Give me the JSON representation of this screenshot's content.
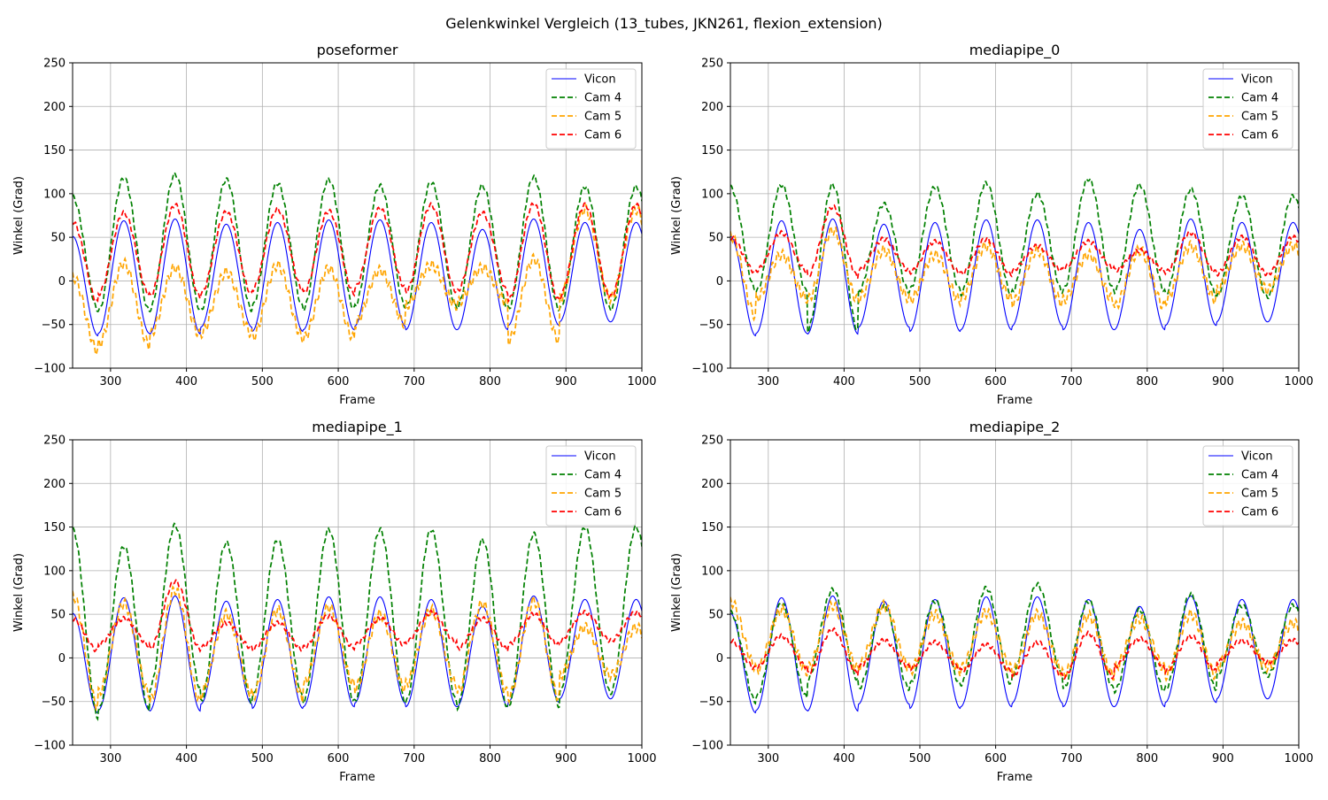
{
  "figure": {
    "title": "Gelenkwinkel Vergleich (13_tubes, JKN261, flexion_extension)"
  },
  "chart_data": [
    {
      "type": "line",
      "title": "poseformer",
      "xlabel": "Frame",
      "ylabel": "Winkel (Grad)",
      "xlim": [
        250,
        1000
      ],
      "ylim": [
        -100,
        250
      ],
      "xticks": [
        300,
        400,
        500,
        600,
        700,
        800,
        900,
        1000
      ],
      "yticks": [
        -100,
        -50,
        0,
        50,
        100,
        150,
        200,
        250
      ],
      "grid": true,
      "legend_position": "top-right",
      "series": [
        {
          "name": "Vicon",
          "color": "#0000ff",
          "style": "solid",
          "peaks": [
            51,
            69,
            71,
            65,
            67,
            70,
            70,
            67,
            59,
            71,
            67
          ],
          "troughs": [
            -63,
            -60,
            -61,
            -53,
            -58,
            -56,
            -52,
            -56,
            -56,
            -51,
            -47
          ]
        },
        {
          "name": "Cam 4",
          "color": "#008000",
          "style": "dashed",
          "peaks": [
            96,
            118,
            122,
            116,
            112,
            116,
            109,
            113,
            109,
            119,
            108
          ],
          "troughs": [
            -33,
            -34,
            -33,
            -33,
            -29,
            -32,
            -29,
            -30,
            -30,
            -32,
            -32
          ]
        },
        {
          "name": "Cam 5",
          "color": "#ffa500",
          "style": "dashed",
          "peaks": [
            5,
            20,
            15,
            10,
            18,
            14,
            12,
            18,
            15,
            25,
            82
          ],
          "troughs": [
            -80,
            -73,
            -62,
            -60,
            -65,
            -66,
            -49,
            -28,
            -25,
            -68,
            -20
          ]
        },
        {
          "name": "Cam 6",
          "color": "#ff0000",
          "style": "dashed",
          "peaks": [
            68,
            78,
            87,
            79,
            82,
            80,
            83,
            87,
            78,
            88,
            87
          ],
          "troughs": [
            -25,
            -15,
            -18,
            -14,
            -10,
            -14,
            -8,
            -12,
            -12,
            -22,
            -18
          ]
        }
      ]
    },
    {
      "type": "line",
      "title": "mediapipe_0",
      "xlabel": "Frame",
      "ylabel": "Winkel (Grad)",
      "xlim": [
        250,
        1000
      ],
      "ylim": [
        -100,
        250
      ],
      "xticks": [
        300,
        400,
        500,
        600,
        700,
        800,
        900,
        1000
      ],
      "yticks": [
        -100,
        -50,
        0,
        50,
        100,
        150,
        200,
        250
      ],
      "grid": true,
      "legend_position": "top-right",
      "series": [
        {
          "name": "Vicon",
          "color": "#0000ff",
          "style": "solid",
          "peaks": [
            51,
            69,
            71,
            65,
            67,
            70,
            70,
            67,
            59,
            71,
            67
          ],
          "troughs": [
            -63,
            -60,
            -61,
            -53,
            -58,
            -56,
            -52,
            -56,
            -56,
            -51,
            -47
          ]
        },
        {
          "name": "Cam 4",
          "color": "#008000",
          "style": "dashed",
          "peaks": [
            107,
            110,
            110,
            88,
            108,
            112,
            100,
            117,
            110,
            105,
            97
          ],
          "troughs": [
            -10,
            -12,
            -57,
            -12,
            -10,
            -15,
            -12,
            -10,
            -12,
            -15,
            -18
          ]
        },
        {
          "name": "Cam 5",
          "color": "#ffa500",
          "style": "dashed",
          "peaks": [
            52,
            30,
            58,
            35,
            30,
            40,
            35,
            30,
            35,
            40,
            40
          ],
          "troughs": [
            -40,
            -20,
            -22,
            -20,
            -22,
            -20,
            -25,
            -22,
            -30,
            -22,
            -10
          ]
        },
        {
          "name": "Cam 6",
          "color": "#ff0000",
          "style": "dashed",
          "peaks": [
            50,
            55,
            85,
            48,
            45,
            48,
            40,
            45,
            35,
            55,
            50
          ],
          "troughs": [
            10,
            12,
            5,
            12,
            10,
            8,
            12,
            15,
            12,
            10,
            8
          ]
        }
      ]
    },
    {
      "type": "line",
      "title": "mediapipe_1",
      "xlabel": "Frame",
      "ylabel": "Winkel (Grad)",
      "xlim": [
        250,
        1000
      ],
      "ylim": [
        -100,
        250
      ],
      "xticks": [
        300,
        400,
        500,
        600,
        700,
        800,
        900,
        1000
      ],
      "yticks": [
        -100,
        -50,
        0,
        50,
        100,
        150,
        200,
        250
      ],
      "grid": true,
      "legend_position": "top-right",
      "series": [
        {
          "name": "Vicon",
          "color": "#0000ff",
          "style": "solid",
          "peaks": [
            51,
            69,
            71,
            65,
            67,
            70,
            70,
            67,
            59,
            71,
            67
          ],
          "troughs": [
            -63,
            -60,
            -61,
            -53,
            -58,
            -56,
            -52,
            -56,
            -56,
            -51,
            -47
          ]
        },
        {
          "name": "Cam 4",
          "color": "#008000",
          "style": "dashed",
          "peaks": [
            147,
            128,
            152,
            132,
            135,
            147,
            147,
            147,
            135,
            142,
            150
          ],
          "troughs": [
            -68,
            -60,
            -35,
            -50,
            -45,
            -50,
            -50,
            -50,
            -57,
            -55,
            -40
          ]
        },
        {
          "name": "Cam 5",
          "color": "#ffa500",
          "style": "dashed",
          "peaks": [
            72,
            62,
            78,
            50,
            55,
            58,
            50,
            55,
            62,
            65,
            35
          ],
          "troughs": [
            -55,
            -40,
            -50,
            -40,
            -45,
            -30,
            -35,
            -30,
            -40,
            -45,
            -20
          ]
        },
        {
          "name": "Cam 6",
          "color": "#ff0000",
          "style": "dashed",
          "peaks": [
            45,
            45,
            88,
            40,
            40,
            48,
            45,
            52,
            45,
            50,
            52
          ],
          "troughs": [
            8,
            15,
            10,
            12,
            10,
            12,
            15,
            18,
            10,
            15,
            20
          ]
        }
      ]
    },
    {
      "type": "line",
      "title": "mediapipe_2",
      "xlabel": "Frame",
      "ylabel": "Winkel (Grad)",
      "xlim": [
        250,
        1000
      ],
      "ylim": [
        -100,
        250
      ],
      "xticks": [
        300,
        400,
        500,
        600,
        700,
        800,
        900,
        1000
      ],
      "yticks": [
        -100,
        -50,
        0,
        50,
        100,
        150,
        200,
        250
      ],
      "grid": true,
      "legend_position": "top-right",
      "series": [
        {
          "name": "Vicon",
          "color": "#0000ff",
          "style": "solid",
          "peaks": [
            51,
            69,
            71,
            65,
            67,
            70,
            70,
            67,
            59,
            71,
            67
          ],
          "troughs": [
            -63,
            -60,
            -61,
            -53,
            -58,
            -56,
            -52,
            -56,
            -56,
            -51,
            -47
          ]
        },
        {
          "name": "Cam 4",
          "color": "#008000",
          "style": "dashed",
          "peaks": [
            52,
            62,
            78,
            60,
            65,
            80,
            84,
            65,
            55,
            73,
            60
          ],
          "troughs": [
            -50,
            -45,
            -25,
            -35,
            -30,
            -30,
            -20,
            -35,
            -38,
            -35,
            -20
          ]
        },
        {
          "name": "Cam 5",
          "color": "#ffa500",
          "style": "dashed",
          "peaks": [
            65,
            55,
            60,
            60,
            50,
            52,
            50,
            48,
            45,
            50,
            40
          ],
          "troughs": [
            -10,
            -15,
            -12,
            -10,
            -15,
            -12,
            -15,
            -20,
            -12,
            -20,
            -10
          ]
        },
        {
          "name": "Cam 6",
          "color": "#ff0000",
          "style": "dashed",
          "peaks": [
            20,
            25,
            32,
            20,
            18,
            15,
            18,
            28,
            22,
            25,
            20
          ],
          "troughs": [
            -12,
            -10,
            -18,
            -10,
            -12,
            -15,
            -20,
            -22,
            -10,
            -15,
            -5
          ]
        }
      ]
    }
  ]
}
